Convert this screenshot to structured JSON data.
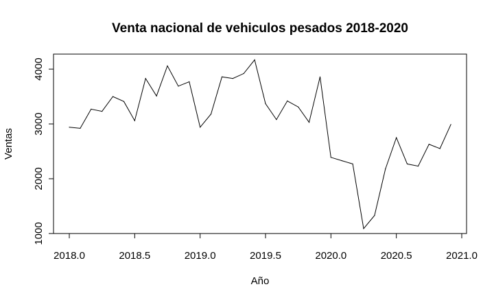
{
  "chart_data": {
    "type": "line",
    "title": "Venta nacional de vehiculos pesados 2018-2020",
    "xlabel": "Año",
    "ylabel": "Ventas",
    "xlim": [
      2018.0,
      2021.0
    ],
    "ylim": [
      1000,
      4150
    ],
    "x_ticks": [
      "2018.0",
      "2018.5",
      "2019.0",
      "2019.5",
      "2020.0",
      "2020.5",
      "2021.0"
    ],
    "y_ticks": [
      "1000",
      "2000",
      "3000",
      "4000"
    ],
    "grid": false,
    "legend": "none",
    "line_color": "#000000",
    "series": [
      {
        "x": [
          2018.0,
          2018.0833,
          2018.1667,
          2018.25,
          2018.3333,
          2018.4167,
          2018.5,
          2018.5833,
          2018.6667,
          2018.75,
          2018.8333,
          2018.9167,
          2019.0,
          2019.0833,
          2019.1667,
          2019.25,
          2019.3333,
          2019.4167,
          2019.5,
          2019.5833,
          2019.6667,
          2019.75,
          2019.8333,
          2019.9167,
          2020.0,
          2020.0833,
          2020.1667,
          2020.25,
          2020.3333,
          2020.4167,
          2020.5,
          2020.5833,
          2020.6667,
          2020.75,
          2020.8333,
          2020.9167
        ],
        "values": [
          2940,
          2920,
          3270,
          3230,
          3500,
          3410,
          3060,
          3830,
          3510,
          4060,
          3690,
          3770,
          2940,
          3180,
          3860,
          3830,
          3920,
          4170,
          3370,
          3080,
          3420,
          3310,
          3030,
          3860,
          2390,
          2330,
          2270,
          1090,
          1330,
          2180,
          2750,
          2270,
          2230,
          2630,
          2550,
          2990
        ]
      }
    ]
  }
}
